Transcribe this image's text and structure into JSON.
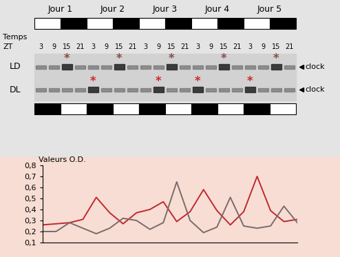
{
  "panel": {
    "days": [
      "Jour 1",
      "Jour 2",
      "Jour 3",
      "Jour 4",
      "Jour 5"
    ],
    "time_label": "Temps",
    "zt_label": "ZT",
    "times": [
      "3",
      "9",
      "15",
      "21"
    ],
    "rows": [
      {
        "label": "LD",
        "stars": [
          2,
          6,
          10,
          14,
          18
        ],
        "color": "#8a4a4a"
      },
      {
        "label": "DL",
        "stars": [
          4,
          9,
          12,
          16
        ],
        "color": "#d02828"
      }
    ],
    "band_label": "clock",
    "star": "*"
  },
  "chart_data": {
    "type": "line",
    "y_label": "Valeurs O.D.",
    "x": [
      1,
      2,
      3,
      4,
      5,
      6,
      7,
      8,
      9,
      10,
      11,
      12,
      13,
      14,
      15,
      16,
      17,
      18,
      19,
      20
    ],
    "xlim": [
      1,
      20
    ],
    "ylim": [
      0.1,
      0.8
    ],
    "yticks": [
      {
        "value": 0.1,
        "label": "0,1"
      },
      {
        "value": 0.2,
        "label": "0,2"
      },
      {
        "value": 0.3,
        "label": "0,3"
      },
      {
        "value": 0.4,
        "label": "0,4"
      },
      {
        "value": 0.5,
        "label": "0,5"
      },
      {
        "value": 0.6,
        "label": "0,6"
      },
      {
        "value": 0.7,
        "label": "0,7"
      },
      {
        "value": 0.8,
        "label": "0,8"
      }
    ],
    "tick_labels": "y",
    "series": [
      {
        "color": "#c0282d",
        "values": [
          0.26,
          0.27,
          0.28,
          0.31,
          0.51,
          0.37,
          0.27,
          0.37,
          0.4,
          0.47,
          0.29,
          0.38,
          0.58,
          0.39,
          0.26,
          0.38,
          0.7,
          0.39,
          0.29,
          0.31
        ]
      },
      {
        "color": "#7a6a6a",
        "values": [
          0.2,
          0.2,
          0.28,
          0.23,
          0.18,
          0.23,
          0.32,
          0.3,
          0.22,
          0.28,
          0.65,
          0.3,
          0.19,
          0.24,
          0.51,
          0.25,
          0.23,
          0.25,
          0.43,
          0.28
        ]
      }
    ]
  }
}
